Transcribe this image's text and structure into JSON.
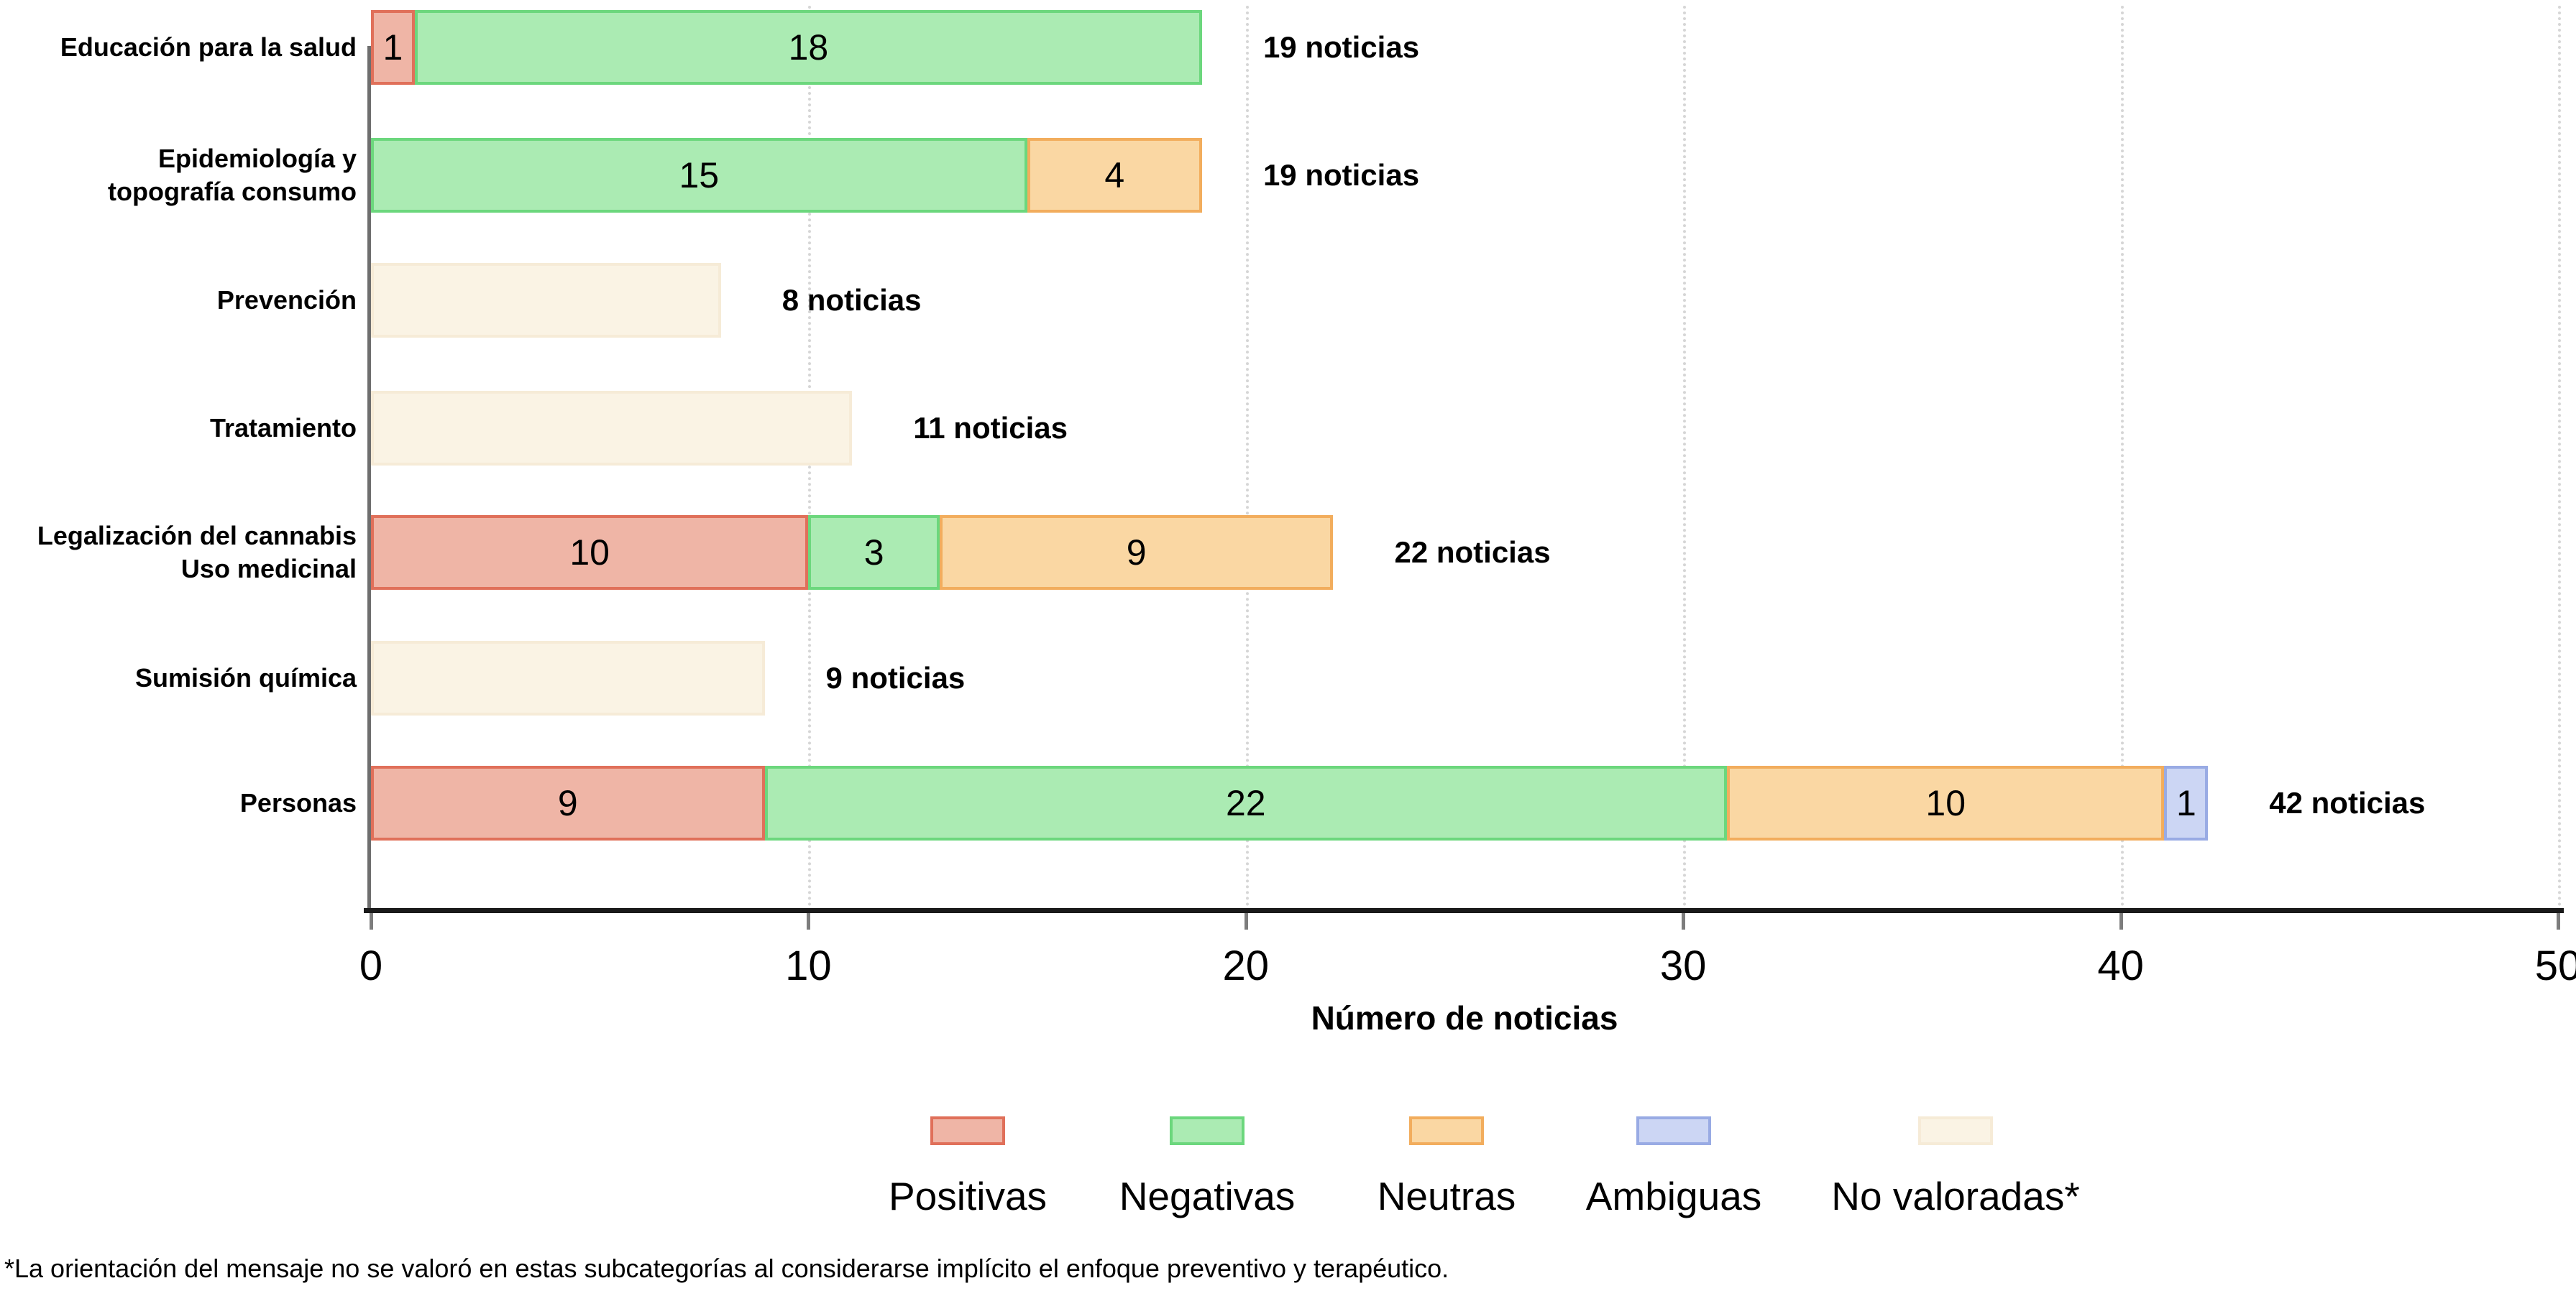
{
  "chart_data": {
    "type": "bar",
    "orientation": "horizontal",
    "stacked": true,
    "title": "",
    "xlabel": "Número de noticias",
    "ylabel": "",
    "xlim": [
      0,
      50
    ],
    "xticks": [
      0,
      10,
      20,
      30,
      40,
      50
    ],
    "grid": "vertical dotted gridlines at each x tick",
    "legend_position": "bottom",
    "legend": [
      {
        "key": "positivas",
        "label": "Positivas"
      },
      {
        "key": "negativas",
        "label": "Negativas"
      },
      {
        "key": "neutras",
        "label": "Neutras"
      },
      {
        "key": "ambiguas",
        "label": "Ambiguas"
      },
      {
        "key": "no_valoradas",
        "label": "No valoradas*"
      }
    ],
    "rows": [
      {
        "label": "Educación para la salud",
        "total": 19,
        "total_label": "19 noticias",
        "segments": [
          {
            "key": "positivas",
            "value": 1
          },
          {
            "key": "negativas",
            "value": 18
          }
        ]
      },
      {
        "label": "Epidemiología y\ntopografía consumo",
        "total": 19,
        "total_label": "19 noticias",
        "segments": [
          {
            "key": "negativas",
            "value": 15
          },
          {
            "key": "neutras",
            "value": 4
          }
        ]
      },
      {
        "label": "Prevención",
        "total": 8,
        "total_label": "8 noticias",
        "segments": [
          {
            "key": "no_valoradas",
            "value": 8,
            "show_value": false
          }
        ]
      },
      {
        "label": "Tratamiento",
        "total": 11,
        "total_label": "11 noticias",
        "segments": [
          {
            "key": "no_valoradas",
            "value": 11,
            "show_value": false
          }
        ]
      },
      {
        "label": "Legalización del cannabis\nUso medicinal",
        "total": 22,
        "total_label": "22 noticias",
        "segments": [
          {
            "key": "positivas",
            "value": 10
          },
          {
            "key": "negativas",
            "value": 3
          },
          {
            "key": "neutras",
            "value": 9
          }
        ]
      },
      {
        "label": "Sumisión química",
        "total": 9,
        "total_label": "9 noticias",
        "segments": [
          {
            "key": "no_valoradas",
            "value": 9,
            "show_value": false
          }
        ]
      },
      {
        "label": "Personas",
        "total": 42,
        "total_label": "42 noticias",
        "segments": [
          {
            "key": "positivas",
            "value": 9
          },
          {
            "key": "negativas",
            "value": 22
          },
          {
            "key": "neutras",
            "value": 10
          },
          {
            "key": "ambiguas",
            "value": 1
          }
        ]
      }
    ],
    "footnote": "*La orientación del mensaje no se valoró en estas subcategorías al considerarse implícito el enfoque preventivo y terapéutico."
  },
  "colors": {
    "positivas": {
      "fill": "#EFB5A6",
      "border": "#E0705A"
    },
    "negativas": {
      "fill": "#ABEBB3",
      "border": "#6CD77D"
    },
    "neutras": {
      "fill": "#FAD7A3",
      "border": "#F2AD5D"
    },
    "ambiguas": {
      "fill": "#CCD6F4",
      "border": "#99ABE4"
    },
    "no_valoradas": {
      "fill": "#FAF3E4",
      "border": "#F6EBD7"
    },
    "x_axis_line": "#1A1A1A",
    "y_axis_line": "#6E6E6E",
    "tick": "#7D7D7D",
    "gridline": "#D6D6D6",
    "text": "#000000"
  }
}
